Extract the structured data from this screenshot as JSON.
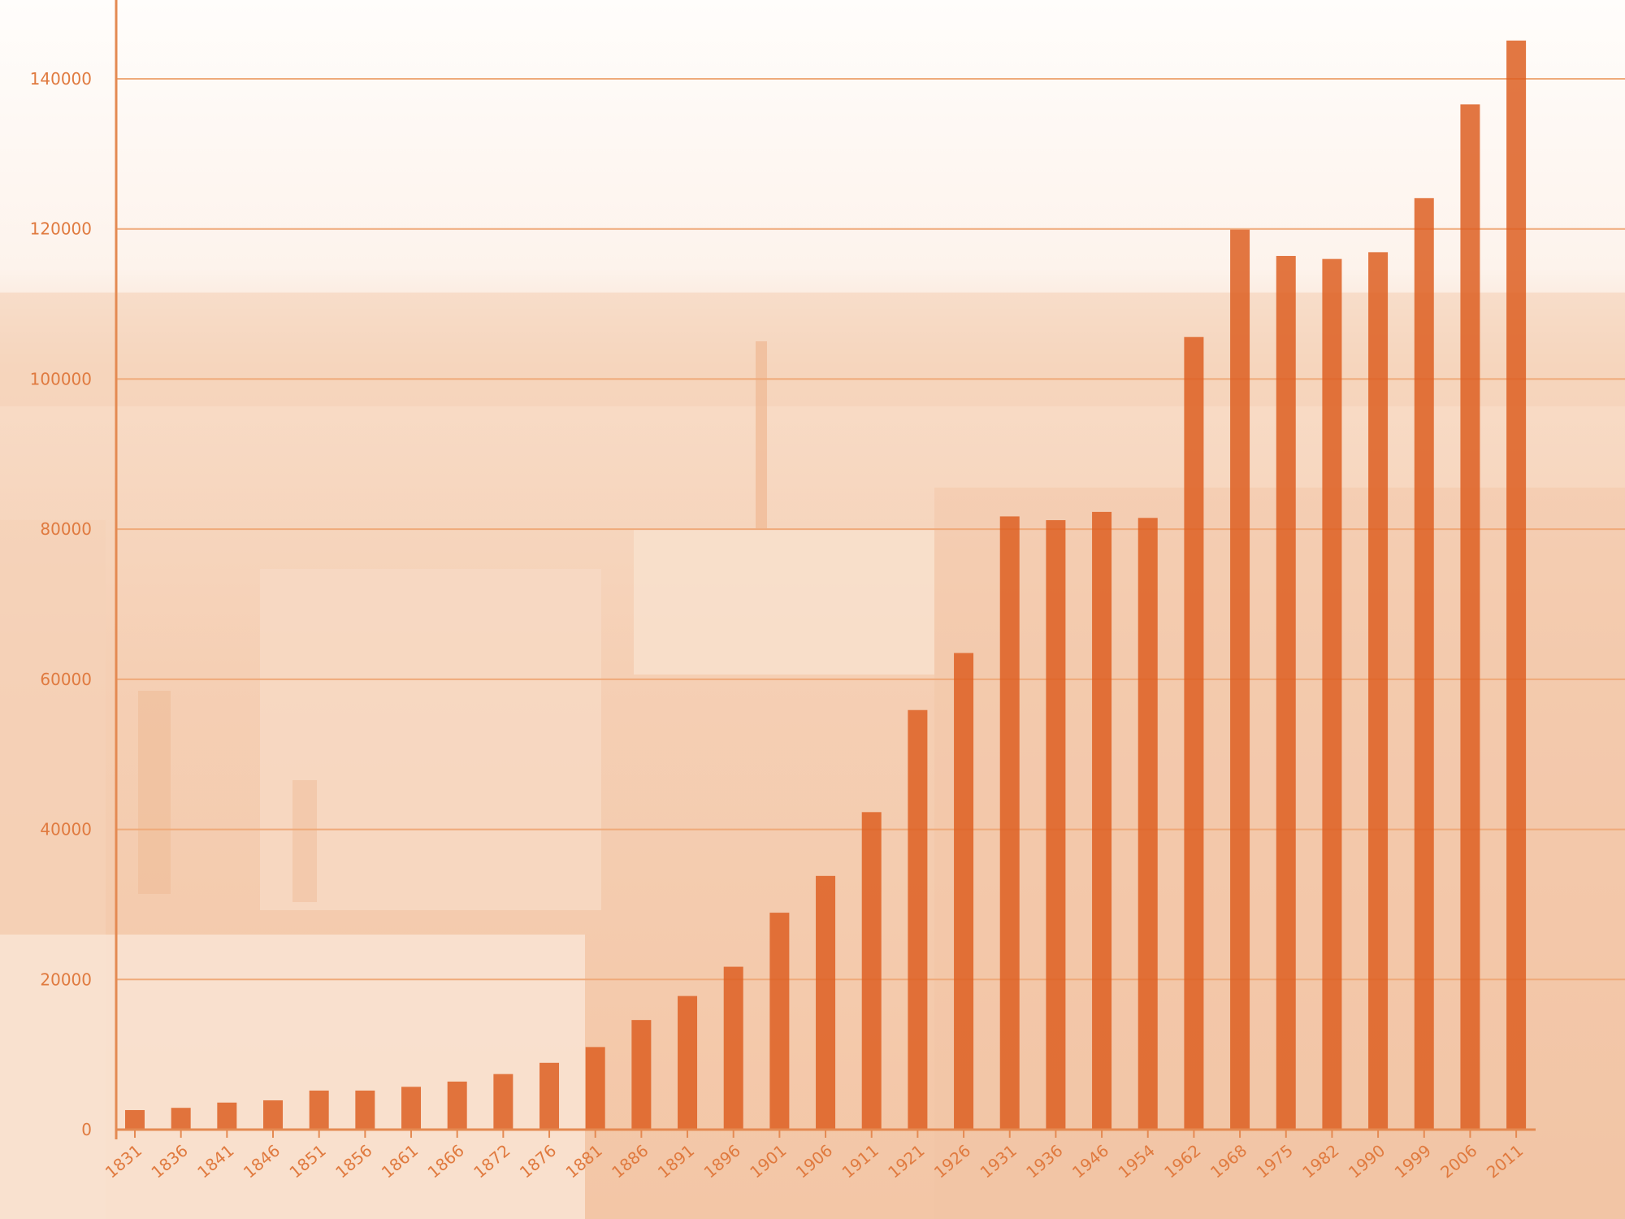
{
  "chart_data": {
    "type": "bar",
    "title": "",
    "xlabel": "",
    "ylabel": "",
    "ylim": [
      0,
      150000
    ],
    "yticks": [
      0,
      20000,
      40000,
      60000,
      80000,
      100000,
      120000,
      140000
    ],
    "grid": true,
    "categories": [
      "1831",
      "1836",
      "1841",
      "1846",
      "1851",
      "1856",
      "1861",
      "1866",
      "1872",
      "1876",
      "1881",
      "1886",
      "1891",
      "1896",
      "1901",
      "1906",
      "1911",
      "1921",
      "1926",
      "1931",
      "1936",
      "1946",
      "1954",
      "1962",
      "1968",
      "1975",
      "1982",
      "1990",
      "1999",
      "2006",
      "2011"
    ],
    "values": [
      2600,
      2900,
      3600,
      3900,
      5200,
      5200,
      5700,
      6400,
      7400,
      8900,
      11000,
      14600,
      17800,
      21700,
      28900,
      33800,
      42300,
      55900,
      63500,
      81700,
      81200,
      82300,
      81500,
      105600,
      119900,
      116400,
      116000,
      116900,
      124100,
      136600,
      145100
    ]
  },
  "colors": {
    "bar": "#dd5f22",
    "grid": "#efaa7a",
    "axis": "#e48a52",
    "text": "#e07a3f",
    "background": "#fdf6f1"
  }
}
